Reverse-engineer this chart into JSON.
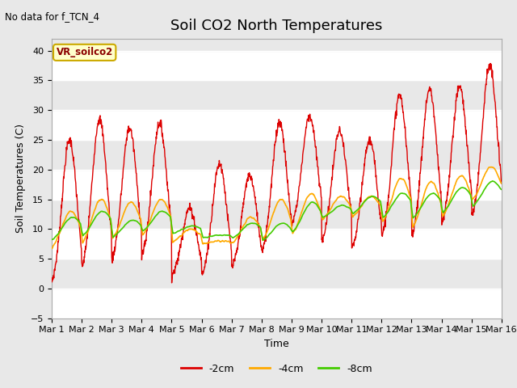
{
  "title": "Soil CO2 North Temperatures",
  "subtitle": "No data for f_TCN_4",
  "ylabel": "Soil Temperatures (C)",
  "xlabel": "Time",
  "xlim": [
    0,
    15
  ],
  "ylim": [
    -5,
    42
  ],
  "yticks": [
    -5,
    0,
    5,
    10,
    15,
    20,
    25,
    30,
    35,
    40
  ],
  "xtick_labels": [
    "Mar 1",
    "Mar 2",
    "Mar 3",
    "Mar 4",
    "Mar 5",
    "Mar 6",
    "Mar 7",
    "Mar 8",
    "Mar 9",
    "Mar 10",
    "Mar 11",
    "Mar 12",
    "Mar 13",
    "Mar 14",
    "Mar 15",
    "Mar 16"
  ],
  "legend_label": "VR_soilco2",
  "color_2cm": "#dd0000",
  "color_4cm": "#ffaa00",
  "color_8cm": "#44cc00",
  "series_labels": [
    "-2cm",
    "-4cm",
    "-8cm"
  ],
  "title_fontsize": 13,
  "label_fontsize": 9,
  "tick_fontsize": 8,
  "band_light": "#f0f0f0",
  "band_dark": "#e0e0e0",
  "daily_peaks_2cm": [
    25,
    28.5,
    27,
    27.8,
    13.5,
    21,
    19,
    28,
    29,
    26.5,
    25,
    32.5,
    33.5,
    34,
    37.5
  ],
  "daily_lows_2cm": [
    -0.3,
    2.0,
    3.5,
    4.0,
    1.5,
    1.0,
    2.5,
    5.0,
    9.8,
    7.0,
    5.5,
    7.5,
    7.5,
    9.5,
    10.5
  ],
  "daily_peaks_4cm": [
    13,
    15,
    14.5,
    15,
    10,
    8,
    12,
    15,
    16,
    15.5,
    15.5,
    18.5,
    18,
    19,
    20.5
  ],
  "daily_lows_4cm": [
    6,
    6.5,
    7.5,
    8,
    7.5,
    7.5,
    7,
    7,
    8,
    11,
    11.5,
    10,
    9,
    11,
    14
  ],
  "daily_peaks_8cm": [
    12,
    13,
    11.5,
    13,
    10.5,
    9,
    11,
    11,
    14.5,
    14,
    15.5,
    16,
    16,
    17,
    18
  ],
  "daily_lows_8cm": [
    7.5,
    8,
    8,
    9,
    9,
    8.5,
    8,
    7.5,
    8.5,
    11.5,
    12,
    11,
    11,
    12,
    13
  ]
}
